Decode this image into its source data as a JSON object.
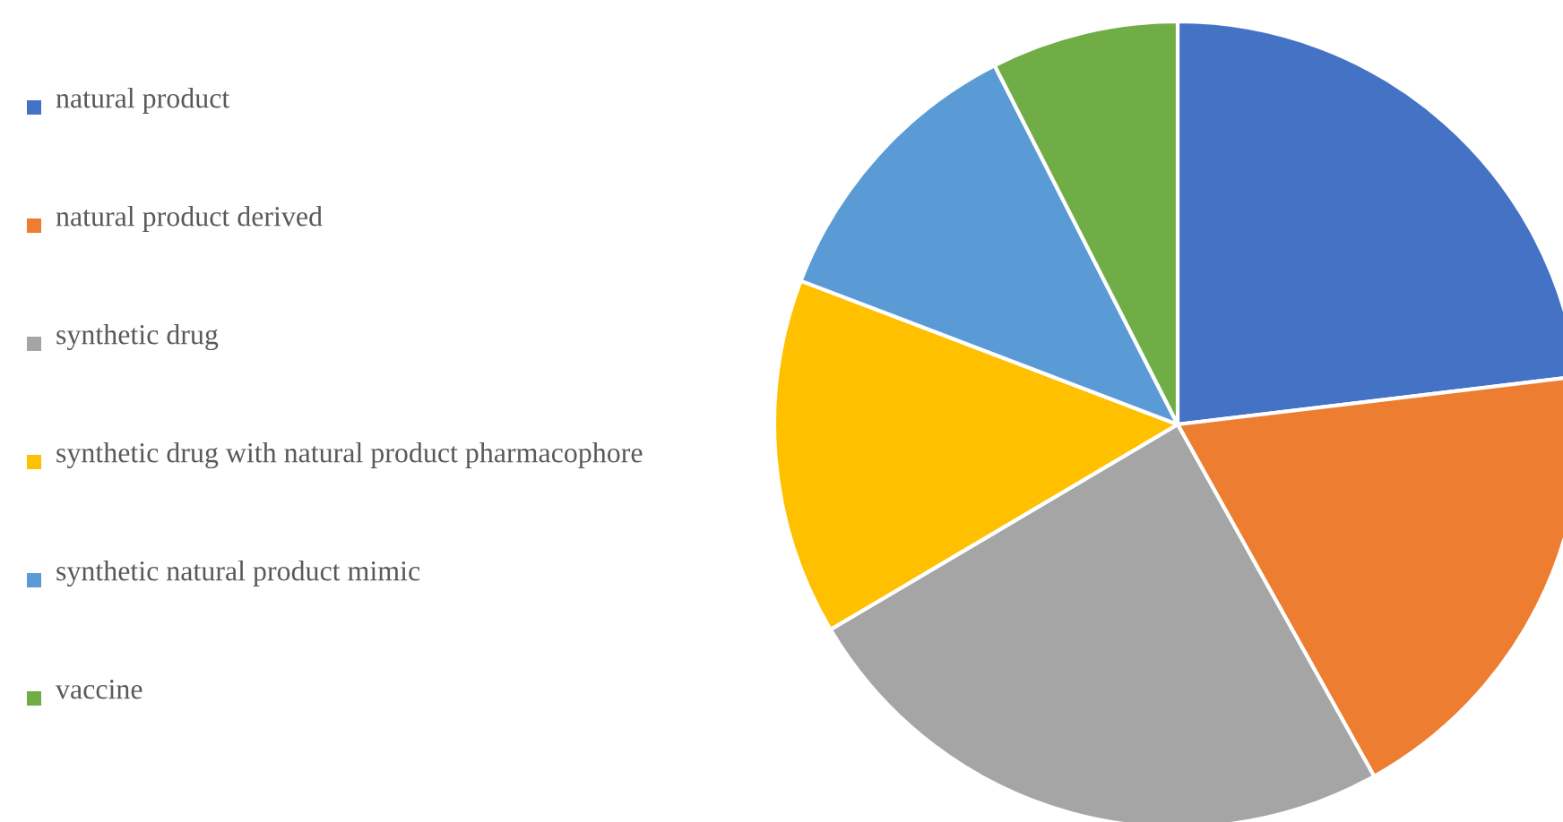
{
  "chart_data": {
    "type": "pie",
    "categories": [
      "natural product",
      "natural product derived",
      "synthetic drug",
      "synthetic drug with natural product pharmacophore",
      "synthetic natural product mimic",
      "vaccine"
    ],
    "values": [
      23.1,
      18.8,
      24.6,
      14.3,
      11.7,
      7.5
    ],
    "colors": [
      "#4472c4",
      "#ed7d31",
      "#a5a5a5",
      "#ffc000",
      "#5b9bd5",
      "#70ad47"
    ],
    "legend": "left"
  }
}
